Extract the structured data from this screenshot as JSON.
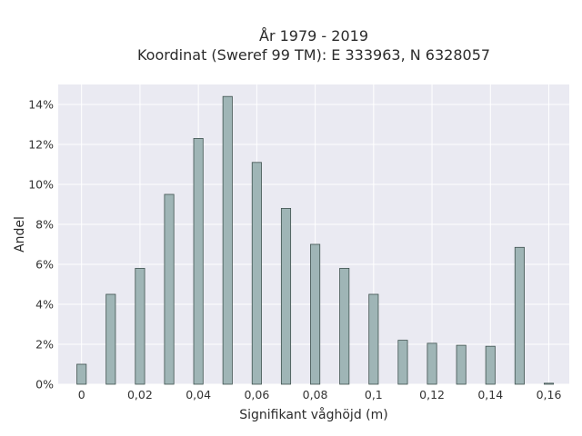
{
  "chart_data": {
    "type": "bar",
    "title_lines": [
      "År 1979 - 2019",
      "Koordinat (Sweref 99 TM): E 333963, N 6328057"
    ],
    "xlabel": "Signifikant våghöjd (m)",
    "ylabel": "Andel",
    "x": [
      0,
      0.01,
      0.02,
      0.03,
      0.04,
      0.05,
      0.06,
      0.07,
      0.08,
      0.09,
      0.1,
      0.11,
      0.12,
      0.13,
      0.14,
      0.15,
      0.16
    ],
    "values": [
      1.0,
      4.5,
      5.8,
      9.5,
      12.3,
      14.4,
      11.1,
      8.8,
      7.0,
      5.8,
      4.5,
      2.2,
      2.05,
      1.95,
      1.9,
      6.85,
      0.05
    ],
    "xlim": [
      -0.008,
      0.167
    ],
    "ylim": [
      0,
      15
    ],
    "x_ticks": [
      0,
      0.02,
      0.04,
      0.06,
      0.08,
      0.1,
      0.12,
      0.14,
      0.16
    ],
    "x_tick_labels": [
      "0",
      "0,02",
      "0,04",
      "0,06",
      "0,08",
      "0,1",
      "0,12",
      "0,14",
      "0,16"
    ],
    "y_ticks": [
      0,
      2,
      4,
      6,
      8,
      10,
      12,
      14
    ],
    "y_tick_labels": [
      "0%",
      "2%",
      "4%",
      "6%",
      "8%",
      "10%",
      "12%",
      "14%"
    ],
    "grid": true,
    "colors": {
      "bar_fill": "#9fb5b6",
      "bar_edge": "#3f524f",
      "plot_bg": "#eaeaf2"
    }
  }
}
